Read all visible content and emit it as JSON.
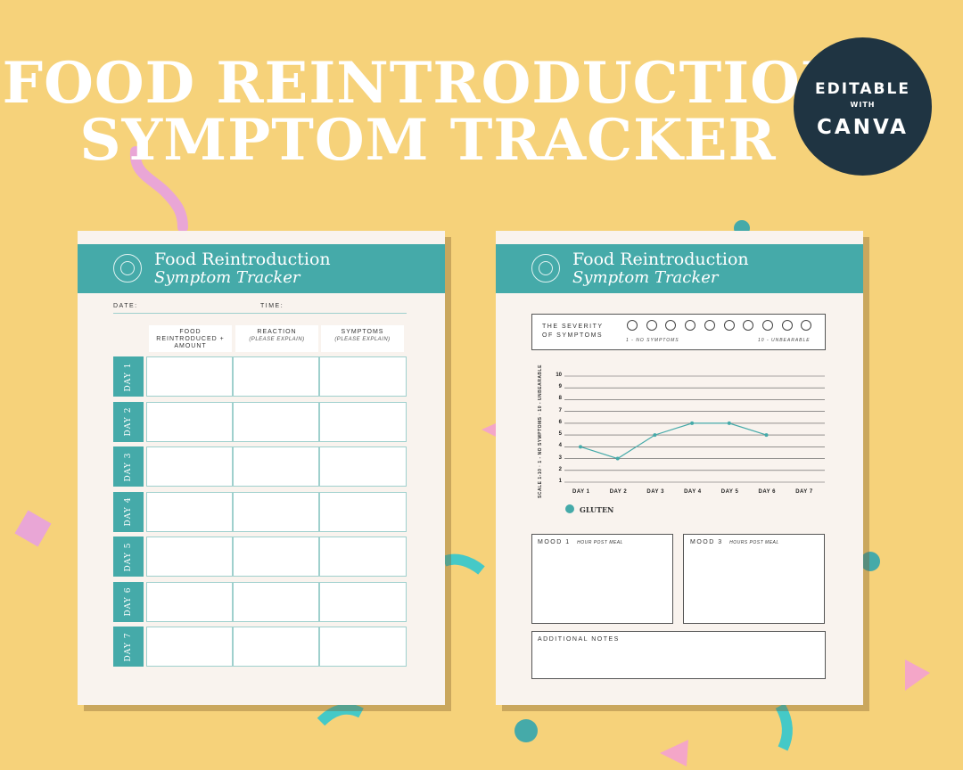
{
  "headline": {
    "line1": "FOOD REINTRODUCTION",
    "line2": "SYMPTOM TRACKER"
  },
  "badge": {
    "line1": "EDITABLE",
    "line2": "WITH",
    "line3": "CANVA"
  },
  "page_title": {
    "line1": "Food Reintroduction",
    "line2": "Symptom Tracker"
  },
  "left": {
    "date_label": "DATE:",
    "time_label": "TIME:",
    "columns": [
      {
        "title": "FOOD REINTRODUCED + AMOUNT",
        "sub": ""
      },
      {
        "title": "REACTION",
        "sub": "(PLEASE EXPLAIN)"
      },
      {
        "title": "SYMPTOMS",
        "sub": "(PLEASE EXPLAIN)"
      }
    ],
    "days": [
      "DAY 1",
      "DAY 2",
      "DAY 3",
      "DAY 4",
      "DAY 5",
      "DAY 6",
      "DAY 7"
    ]
  },
  "right": {
    "severity": {
      "line1": "THE SEVERITY",
      "line2": "OF SYMPTOMS",
      "low": "1 - NO SYMPTOMS",
      "high": "10 - UNBEARABLE"
    },
    "legend": "GLUTEN",
    "mood1": {
      "label": "MOOD 1",
      "sub": "HOUR POST MEAL"
    },
    "mood3": {
      "label": "MOOD 3",
      "sub": "HOURS POST MEAL"
    },
    "notes_label": "ADDITIONAL NOTES"
  },
  "chart_data": {
    "type": "line",
    "categories": [
      "DAY 1",
      "DAY 2",
      "DAY 3",
      "DAY 4",
      "DAY 5",
      "DAY 6",
      "DAY 7"
    ],
    "series": [
      {
        "name": "GLUTEN",
        "values": [
          4,
          3,
          5,
          6,
          6,
          5,
          null
        ]
      }
    ],
    "ylabel": "SCALE 1-10 · 1 - NO SYMPTOMS · 10 - UNBEARABLE",
    "yticks": [
      1,
      2,
      3,
      4,
      5,
      6,
      7,
      8,
      9,
      10
    ],
    "ylim": [
      1,
      10
    ],
    "grid": true,
    "legend_position": "bottom-left",
    "color": "#45aaa9"
  }
}
